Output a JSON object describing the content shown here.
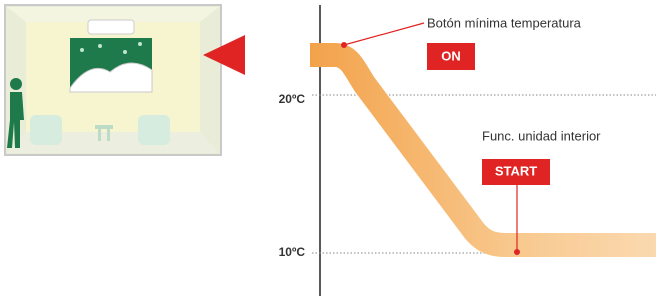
{
  "axis": {
    "labels": [
      "20ºC",
      "10ºC"
    ]
  },
  "annotations": [
    {
      "text": "Botón mínima temperatura",
      "button": "ON"
    },
    {
      "text": "Func. unidad interior",
      "button": "START"
    }
  ]
}
